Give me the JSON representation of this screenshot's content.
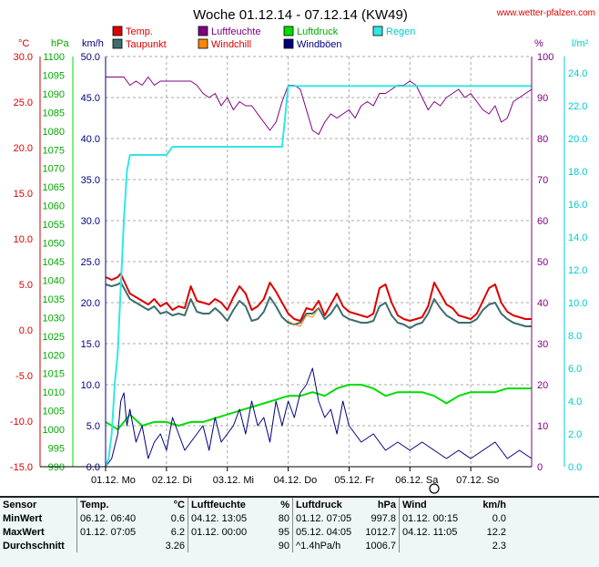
{
  "header": {
    "title": "Woche 01.12.14 - 07.12.14 (KW49)",
    "website": "www.wetter-pfalzen.com"
  },
  "colors": {
    "temp": "#dd0000",
    "dewpoint": "#3d6e6e",
    "humidity": "#800080",
    "windchill": "#ff8800",
    "pressure": "#00dd00",
    "gusts": "#000080",
    "rain": "#33e6e6",
    "grid": "#aaaaaa"
  },
  "legend": [
    {
      "label": "Temp.",
      "color": "#dd0000",
      "text_color": "#dd0000"
    },
    {
      "label": "Luftfeuchte",
      "color": "#800080",
      "text_color": "#800080"
    },
    {
      "label": "Luftdruck",
      "color": "#00dd00",
      "text_color": "#00aa00"
    },
    {
      "label": "Regen",
      "color": "#33e6e6",
      "text_color": "#00cccc"
    },
    {
      "label": "Taupunkt",
      "color": "#3d6e6e",
      "text_color": "#dd0000"
    },
    {
      "label": "Windchill",
      "color": "#ff8800",
      "text_color": "#dd0000"
    },
    {
      "label": "Windböen",
      "color": "#000080",
      "text_color": "#000080"
    }
  ],
  "chart_data": {
    "type": "line",
    "title": "Woche 01.12.14 - 07.12.14 (KW49)",
    "x_labels": [
      "01.12. Mo",
      "02.12. Di",
      "03.12. Mi",
      "04.12. Do",
      "05.12. Fr",
      "06.12. Sa",
      "07.12. So"
    ],
    "axes": {
      "temperature": {
        "unit": "°C",
        "min": -15,
        "max": 30,
        "ticks": [
          "30.0",
          "25.0",
          "20.0",
          "15.0",
          "10.0",
          "5.0",
          "0.0",
          "-5.0",
          "-10.0",
          "-15.0"
        ]
      },
      "pressure": {
        "unit": "hPa",
        "min": 990,
        "max": 1100,
        "ticks": [
          "1100",
          "1095",
          "1090",
          "1085",
          "1080",
          "1075",
          "1070",
          "1065",
          "1060",
          "1055",
          "1050",
          "1045",
          "1040",
          "1035",
          "1030",
          "1025",
          "1020",
          "1015",
          "1010",
          "1005",
          "1000",
          "995",
          "990"
        ]
      },
      "wind": {
        "unit": "km/h",
        "min": 0,
        "max": 50,
        "ticks": [
          "50.0",
          "45.0",
          "40.0",
          "35.0",
          "30.0",
          "25.0",
          "20.0",
          "15.0",
          "10.0",
          "5.0",
          "0.0"
        ]
      },
      "humidity": {
        "unit": "%",
        "min": 0,
        "max": 100,
        "ticks": [
          "100",
          "90",
          "80",
          "70",
          "60",
          "50",
          "40",
          "30",
          "20",
          "10",
          "0"
        ]
      },
      "rain": {
        "unit": "l/m²",
        "min": 0,
        "max": 25,
        "ticks": [
          "24.0",
          "22.0",
          "20.0",
          "18.0",
          "16.0",
          "14.0",
          "12.0",
          "10.0",
          "8.0",
          "6.0",
          "4.0",
          "2.0",
          "0.0"
        ]
      }
    },
    "series": [
      {
        "name": "Temp.",
        "axis": "temperature",
        "x": [
          0,
          0.1,
          0.2,
          0.25,
          0.3,
          0.4,
          0.5,
          0.6,
          0.7,
          0.8,
          0.9,
          1.0,
          1.1,
          1.2,
          1.3,
          1.4,
          1.5,
          1.6,
          1.7,
          1.8,
          1.9,
          2.0,
          2.1,
          2.2,
          2.3,
          2.4,
          2.5,
          2.6,
          2.7,
          2.8,
          2.9,
          3.0,
          3.1,
          3.2,
          3.3,
          3.4,
          3.5,
          3.6,
          3.7,
          3.8,
          3.9,
          4.0,
          4.1,
          4.2,
          4.3,
          4.4,
          4.5,
          4.6,
          4.7,
          4.8,
          4.9,
          5.0,
          5.1,
          5.2,
          5.3,
          5.4,
          5.5,
          5.6,
          5.7,
          5.8,
          5.9,
          6.0,
          6.1,
          6.2,
          6.3,
          6.4,
          6.5,
          6.6,
          6.7,
          6.8,
          6.9,
          7.0
        ],
        "y": [
          5.8,
          5.5,
          5.8,
          6.2,
          5.4,
          4.0,
          3.6,
          3.2,
          2.8,
          3.4,
          2.6,
          3.0,
          2.2,
          2.6,
          2.4,
          4.8,
          3.2,
          3.0,
          2.8,
          3.4,
          3.0,
          2.2,
          3.6,
          4.8,
          4.0,
          2.2,
          2.6,
          3.4,
          5.2,
          4.2,
          3.0,
          1.8,
          1.2,
          1.0,
          2.4,
          2.2,
          3.2,
          1.6,
          2.8,
          4.0,
          2.6,
          2.0,
          1.8,
          1.6,
          1.4,
          1.8,
          4.6,
          5.0,
          3.0,
          1.6,
          1.2,
          1.0,
          1.2,
          1.4,
          2.6,
          5.2,
          4.0,
          2.8,
          2.4,
          1.6,
          1.4,
          1.2,
          1.8,
          3.2,
          4.6,
          5.0,
          3.0,
          2.0,
          1.6,
          1.4,
          1.2,
          1.2
        ]
      },
      {
        "name": "Taupunkt",
        "axis": "temperature",
        "x": [
          0,
          0.1,
          0.2,
          0.25,
          0.3,
          0.4,
          0.5,
          0.6,
          0.7,
          0.8,
          0.9,
          1.0,
          1.1,
          1.2,
          1.3,
          1.4,
          1.5,
          1.6,
          1.7,
          1.8,
          1.9,
          2.0,
          2.1,
          2.2,
          2.3,
          2.4,
          2.5,
          2.6,
          2.7,
          2.8,
          2.9,
          3.0,
          3.1,
          3.2,
          3.3,
          3.4,
          3.5,
          3.6,
          3.7,
          3.8,
          3.9,
          4.0,
          4.1,
          4.2,
          4.3,
          4.4,
          4.5,
          4.6,
          4.7,
          4.8,
          4.9,
          5.0,
          5.1,
          5.2,
          5.3,
          5.4,
          5.5,
          5.6,
          5.7,
          5.8,
          5.9,
          6.0,
          6.1,
          6.2,
          6.3,
          6.4,
          6.5,
          6.6,
          6.7,
          6.8,
          6.9,
          7.0
        ],
        "y": [
          5.0,
          4.8,
          5.0,
          5.2,
          4.6,
          3.4,
          3.0,
          2.6,
          2.2,
          2.6,
          1.8,
          2.0,
          1.6,
          1.8,
          1.6,
          3.4,
          2.0,
          1.8,
          1.8,
          2.4,
          1.8,
          1.0,
          2.2,
          3.2,
          2.6,
          1.0,
          1.2,
          2.0,
          3.6,
          2.6,
          1.4,
          0.8,
          0.6,
          0.8,
          1.8,
          1.8,
          2.4,
          1.2,
          1.8,
          2.8,
          1.6,
          1.2,
          1.0,
          0.8,
          0.8,
          1.0,
          2.6,
          3.0,
          1.6,
          0.8,
          0.6,
          0.2,
          0.6,
          0.8,
          1.8,
          3.4,
          2.4,
          1.6,
          1.2,
          0.8,
          0.8,
          0.8,
          1.2,
          2.2,
          2.8,
          3.0,
          1.8,
          1.2,
          0.8,
          0.6,
          0.4,
          0.4
        ]
      },
      {
        "name": "Windchill",
        "axis": "temperature",
        "x": [
          3.0,
          3.1,
          3.2,
          3.3,
          3.4,
          3.5
        ],
        "y": [
          1.0,
          0.6,
          0.4,
          1.6,
          1.4,
          2.4
        ]
      },
      {
        "name": "Luftfeuchte",
        "axis": "humidity",
        "x": [
          0,
          0.2,
          0.3,
          0.4,
          0.5,
          0.6,
          0.7,
          0.8,
          0.9,
          1.0,
          1.2,
          1.4,
          1.5,
          1.6,
          1.7,
          1.8,
          1.9,
          2.0,
          2.1,
          2.2,
          2.3,
          2.4,
          2.5,
          2.6,
          2.7,
          2.8,
          2.9,
          3.0,
          3.1,
          3.2,
          3.3,
          3.4,
          3.5,
          3.6,
          3.7,
          3.8,
          3.9,
          4.0,
          4.1,
          4.2,
          4.3,
          4.4,
          4.5,
          4.6,
          4.7,
          4.8,
          4.9,
          5.0,
          5.1,
          5.2,
          5.3,
          5.4,
          5.5,
          5.6,
          5.7,
          5.8,
          5.9,
          6.0,
          6.1,
          6.2,
          6.3,
          6.4,
          6.5,
          6.6,
          6.7,
          6.8,
          6.9,
          7.0
        ],
        "y": [
          95,
          95,
          95,
          93,
          94,
          93,
          95,
          93,
          94,
          94,
          94,
          94,
          93,
          91,
          90,
          91,
          88,
          90,
          87,
          89,
          88,
          88,
          86,
          84,
          82,
          84,
          89,
          93,
          93,
          92,
          87,
          82,
          81,
          84,
          86,
          85,
          86,
          87,
          85,
          88,
          89,
          88,
          91,
          91,
          92,
          93,
          93,
          94,
          93,
          90,
          87,
          89,
          88,
          90,
          91,
          92,
          90,
          91,
          89,
          87,
          86,
          88,
          84,
          85,
          89,
          90,
          91,
          92
        ]
      },
      {
        "name": "Luftdruck",
        "axis": "pressure",
        "x": [
          0,
          0.2,
          0.4,
          0.6,
          0.8,
          1.0,
          1.2,
          1.4,
          1.6,
          1.8,
          2.0,
          2.2,
          2.4,
          2.6,
          2.8,
          3.0,
          3.2,
          3.4,
          3.6,
          3.8,
          4.0,
          4.2,
          4.4,
          4.6,
          4.8,
          5.0,
          5.2,
          5.4,
          5.6,
          5.8,
          6.0,
          6.2,
          6.4,
          6.6,
          6.8,
          7.0
        ],
        "y": [
          1002,
          1000,
          1004,
          1001,
          1002,
          1002,
          1001,
          1002,
          1002,
          1003,
          1004,
          1005,
          1006,
          1007,
          1008,
          1009,
          1009,
          1010,
          1009,
          1011,
          1012,
          1012,
          1011,
          1009,
          1010,
          1010,
          1010,
          1009,
          1007,
          1009,
          1010,
          1010,
          1010,
          1011,
          1011,
          1011
        ]
      },
      {
        "name": "Windböen",
        "axis": "wind",
        "x": [
          0,
          0.1,
          0.2,
          0.25,
          0.3,
          0.35,
          0.4,
          0.5,
          0.6,
          0.7,
          0.8,
          0.9,
          1.0,
          1.1,
          1.2,
          1.3,
          1.4,
          1.5,
          1.6,
          1.7,
          1.8,
          1.9,
          2.0,
          2.1,
          2.2,
          2.3,
          2.4,
          2.5,
          2.6,
          2.7,
          2.8,
          2.9,
          3.0,
          3.1,
          3.2,
          3.3,
          3.4,
          3.5,
          3.6,
          3.7,
          3.8,
          3.9,
          4.0,
          4.2,
          4.4,
          4.6,
          4.8,
          5.0,
          5.2,
          5.4,
          5.6,
          5.8,
          6.0,
          6.2,
          6.4,
          6.6,
          6.8,
          7.0
        ],
        "y": [
          0,
          1,
          4,
          8,
          9,
          5,
          7,
          3,
          5,
          1,
          3,
          4,
          2,
          6,
          4,
          2,
          3,
          4,
          5,
          2,
          6,
          3,
          4,
          5,
          7,
          4,
          8,
          5,
          6,
          3,
          8,
          5,
          8,
          6,
          9,
          10,
          12,
          8,
          6,
          7,
          4,
          8,
          5,
          3,
          4,
          2,
          3,
          2,
          3,
          2,
          1,
          2,
          1,
          2,
          3,
          1,
          2,
          1
        ]
      },
      {
        "name": "Regen",
        "axis": "rain",
        "x": [
          0,
          0.05,
          0.1,
          0.15,
          0.2,
          0.25,
          0.3,
          0.35,
          0.4,
          0.5,
          1.0,
          1.1,
          1.2,
          2.0,
          2.5,
          2.8,
          2.9,
          3.0,
          3.5,
          4.0,
          5.0,
          6.0,
          7.0
        ],
        "y": [
          0,
          0.5,
          2,
          5,
          7,
          11,
          15,
          18,
          19,
          19,
          19,
          19.5,
          19.5,
          19.5,
          19.5,
          19.5,
          19.5,
          23.2,
          23.2,
          23.2,
          23.2,
          23.2,
          23.2
        ]
      }
    ]
  },
  "table": {
    "sections": [
      "Sensor",
      "Temp.",
      "°C",
      "Luftfeuchte",
      "%",
      "Luftdruck",
      "hPa",
      "Wind",
      "km/h"
    ],
    "rows": [
      {
        "label": "MinWert",
        "temp_time": "06.12.  06:40",
        "temp_val": "0.6",
        "hum_time": "04.12.  13:05",
        "hum_val": "80",
        "press_time": "01.12.  07:05",
        "press_val": "997.8",
        "wind_time": "01.12.  00:15",
        "wind_val": "0.0"
      },
      {
        "label": "MaxWert",
        "temp_time": "01.12.  07:05",
        "temp_val": "6.2",
        "hum_time": "01.12.  00:00",
        "hum_val": "95",
        "press_time": "05.12.  04:05",
        "press_val": "1012.7",
        "wind_time": "04.12.  11:05",
        "wind_val": "12.2"
      },
      {
        "label": "Durchschnitt",
        "temp_time": "",
        "temp_val": "3.26",
        "hum_time": "",
        "hum_val": "90",
        "press_time": "^1.4hPa/h",
        "press_val": "1006.7",
        "wind_time": "",
        "wind_val": "2.3"
      }
    ]
  }
}
